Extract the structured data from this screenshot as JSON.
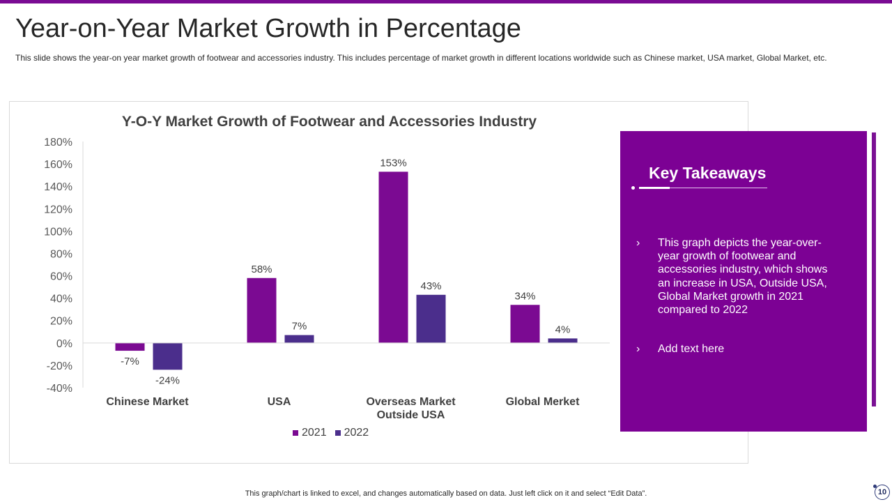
{
  "slide": {
    "title": "Year-on-Year Market Growth in Percentage",
    "subtitle": "This slide shows the year-on year  market growth of footwear and accessories industry. This includes percentage of market growth in different locations worldwide such as Chinese market, USA market, Global Market,  etc.",
    "footer": "This graph/chart is linked to excel,  and changes automatically based on data. Just left click on it and select “Edit Data”.",
    "page_number": "10"
  },
  "colors": {
    "accent": "#7c0194",
    "series_2021": "#7b0a92",
    "series_2022": "#4b2e8c"
  },
  "takeaways": {
    "title": "Key Takeaways",
    "bullet_icon": "chevron-right-icon",
    "items": [
      "This graph depicts the year-over-year growth of footwear and accessories industry, which shows an increase in USA, Outside USA, Global Market growth in 2021 compared to 2022",
      "Add text here"
    ]
  },
  "chart_data": {
    "type": "bar",
    "title": "Y-O-Y Market Growth of Footwear and Accessories Industry",
    "categories": [
      "Chinese Market",
      "USA",
      "Overseas Market Outside USA",
      "Global Merket"
    ],
    "category_lines": [
      [
        "Chinese Market"
      ],
      [
        "USA"
      ],
      [
        "Overseas Market",
        "Outside USA"
      ],
      [
        "Global Merket"
      ]
    ],
    "series": [
      {
        "name": "2021",
        "values": [
          -7,
          58,
          153,
          34
        ],
        "labels": [
          "-7%",
          "58%",
          "153%",
          "34%"
        ]
      },
      {
        "name": "2022",
        "values": [
          -24,
          7,
          43,
          4
        ],
        "labels": [
          "-24%",
          "7%",
          "43%",
          "4%"
        ]
      }
    ],
    "ylim": [
      -40,
      180
    ],
    "yticks": [
      180,
      160,
      140,
      120,
      100,
      80,
      60,
      40,
      20,
      0,
      -20,
      -40
    ],
    "ytick_labels": [
      "180%",
      "160%",
      "140%",
      "120%",
      "100%",
      "80%",
      "60%",
      "40%",
      "20%",
      "0%",
      "-20%",
      "-40%"
    ],
    "xlabel": "",
    "ylabel": "",
    "legend": "bottom",
    "grid": false
  }
}
